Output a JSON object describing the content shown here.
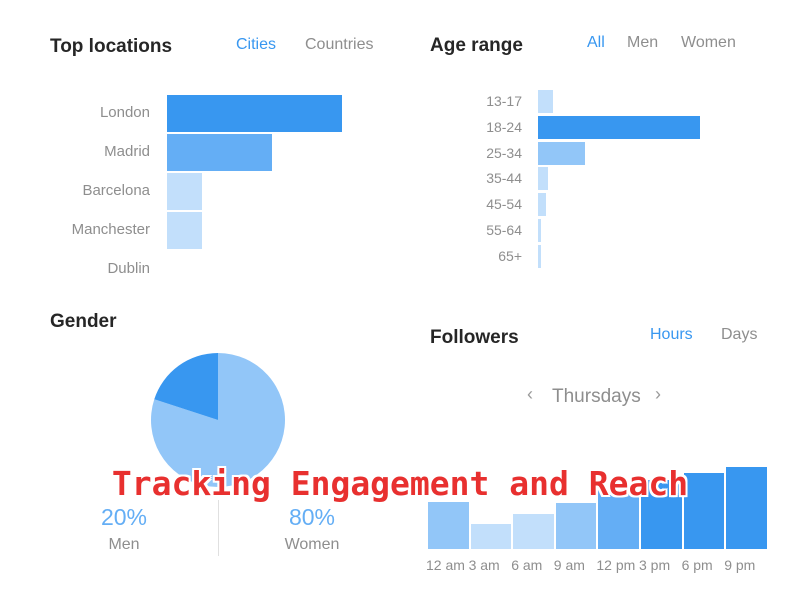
{
  "top_locations": {
    "title": "Top locations",
    "tabs": [
      {
        "label": "Cities",
        "active": true
      },
      {
        "label": "Countries",
        "active": false
      }
    ],
    "items": [
      {
        "label": "London",
        "value": 100,
        "color": "#3897f0"
      },
      {
        "label": "Madrid",
        "value": 60,
        "color": "#64aef5"
      },
      {
        "label": "Barcelona",
        "value": 20,
        "color": "#c2dffb"
      },
      {
        "label": "Manchester",
        "value": 20,
        "color": "#c2dffb"
      },
      {
        "label": "Dublin",
        "value": 0,
        "color": "#c2dffb"
      }
    ]
  },
  "age_range": {
    "title": "Age range",
    "tabs": [
      {
        "label": "All",
        "active": true
      },
      {
        "label": "Men",
        "active": false
      },
      {
        "label": "Women",
        "active": false
      }
    ],
    "items": [
      {
        "label": "13-17",
        "value": 9,
        "color": "#c2dffb"
      },
      {
        "label": "18-24",
        "value": 100,
        "color": "#3897f0"
      },
      {
        "label": "25-34",
        "value": 29,
        "color": "#92c6f8"
      },
      {
        "label": "35-44",
        "value": 6,
        "color": "#c2dffb"
      },
      {
        "label": "45-54",
        "value": 5,
        "color": "#c2dffb"
      },
      {
        "label": "55-64",
        "value": 1,
        "color": "#c2dffb"
      },
      {
        "label": "65+",
        "value": 1,
        "color": "#c2dffb"
      }
    ]
  },
  "gender": {
    "title": "Gender",
    "men": {
      "percent": "20%",
      "label": "Men",
      "value": 20,
      "color": "#3897f0"
    },
    "women": {
      "percent": "80%",
      "label": "Women",
      "value": 80,
      "color": "#92c6f8"
    }
  },
  "followers": {
    "title": "Followers",
    "tabs": [
      {
        "label": "Hours",
        "active": true
      },
      {
        "label": "Days",
        "active": false
      }
    ],
    "day": "Thursdays",
    "prev_symbol": "‹",
    "next_symbol": "›",
    "hours": [
      "12 am",
      "3 am",
      "6 am",
      "9 am",
      "12 pm",
      "3 pm",
      "6 pm",
      "9 pm"
    ],
    "values": [
      48,
      25,
      35,
      47,
      60,
      70,
      77,
      83
    ],
    "colors": [
      "#92c6f8",
      "#c2dffb",
      "#c2dffb",
      "#92c6f8",
      "#64aef5",
      "#3897f0",
      "#3897f0",
      "#3897f0"
    ]
  },
  "overlay_caption": "Tracking Engagement and Reach"
}
